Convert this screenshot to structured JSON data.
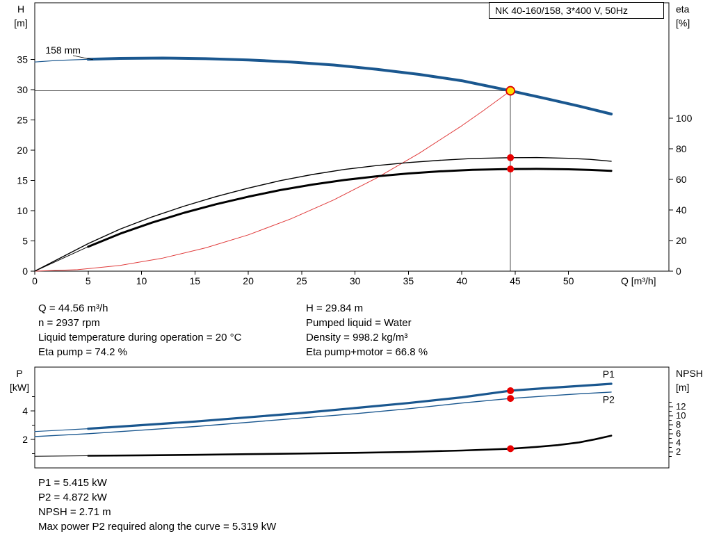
{
  "title_box": {
    "label": "NK 40-160/158, 3*400 V, 50Hz"
  },
  "colors": {
    "curve_blue": "#1a578f",
    "curve_red": "#e03a3a",
    "curve_black": "#000000",
    "dot_red": "#e80000",
    "op_fill": "#ffdf00",
    "op_stroke": "#dd0000",
    "crosshair": "#4d4d4d",
    "label_blue": "#1a578f"
  },
  "chart_data": [
    {
      "type": "line",
      "name": "qh-eta-chart",
      "title": "NK 40-160/158, 3*400 V, 50Hz",
      "xlabel": "Q [m³/h]",
      "ylabel_left": [
        "H",
        "[m]"
      ],
      "ylabel_right": [
        "eta",
        "[%]"
      ],
      "xlim": [
        0,
        59.4
      ],
      "ylim_left": [
        0,
        44.4
      ],
      "ylim_right": [
        0,
        175.5
      ],
      "x_ticks": [
        0,
        5,
        10,
        15,
        20,
        25,
        30,
        35,
        40,
        45,
        50
      ],
      "y_ticks_left": [
        0,
        5,
        10,
        15,
        20,
        25,
        30,
        35
      ],
      "y_ticks_right": [
        0,
        20,
        40,
        60,
        80,
        100
      ],
      "grid": false,
      "series": [
        {
          "name": "head-curve-158mm",
          "axis": "left",
          "color": "curve_blue",
          "width": 4,
          "thin_lead": {
            "until": 5,
            "width": 1.2
          },
          "points": [
            [
              0,
              34.6
            ],
            [
              2,
              34.85
            ],
            [
              5,
              35.05
            ],
            [
              8,
              35.2
            ],
            [
              12,
              35.25
            ],
            [
              16,
              35.15
            ],
            [
              20,
              34.95
            ],
            [
              24,
              34.6
            ],
            [
              28,
              34.1
            ],
            [
              32,
              33.4
            ],
            [
              36,
              32.55
            ],
            [
              40,
              31.5
            ],
            [
              42.5,
              30.6
            ],
            [
              44.56,
              29.84
            ],
            [
              48,
              28.5
            ],
            [
              51,
              27.3
            ],
            [
              54,
              26.0
            ]
          ]
        },
        {
          "name": "system-curve",
          "axis": "left",
          "color": "curve_red",
          "width": 1,
          "points": [
            [
              0,
              0
            ],
            [
              4,
              0.24
            ],
            [
              8,
              0.96
            ],
            [
              12,
              2.16
            ],
            [
              16,
              3.85
            ],
            [
              20,
              6.01
            ],
            [
              24,
              8.66
            ],
            [
              28,
              11.78
            ],
            [
              32,
              15.39
            ],
            [
              36,
              19.48
            ],
            [
              40,
              24.05
            ],
            [
              42,
              26.52
            ],
            [
              44.56,
              29.84
            ]
          ]
        },
        {
          "name": "eta-pump-curve",
          "axis": "right",
          "color": "curve_black",
          "width": 1.4,
          "points": [
            [
              0,
              0
            ],
            [
              5,
              18
            ],
            [
              8,
              27.5
            ],
            [
              11,
              35.5
            ],
            [
              14,
              42.5
            ],
            [
              17,
              48.8
            ],
            [
              20,
              54.3
            ],
            [
              23,
              59.2
            ],
            [
              26,
              63.2
            ],
            [
              29,
              66.5
            ],
            [
              32,
              69
            ],
            [
              35,
              71
            ],
            [
              38,
              72.5
            ],
            [
              41,
              73.7
            ],
            [
              44.56,
              74.2
            ],
            [
              47,
              74.3
            ],
            [
              50,
              73.8
            ],
            [
              52,
              73.1
            ],
            [
              54,
              71.9
            ]
          ]
        },
        {
          "name": "eta-pump-motor-curve",
          "axis": "right",
          "color": "curve_black",
          "width": 3,
          "thin_lead": {
            "until": 5,
            "width": 1
          },
          "points": [
            [
              0,
              0
            ],
            [
              5,
              16
            ],
            [
              8,
              24.5
            ],
            [
              11,
              31.8
            ],
            [
              14,
              38.2
            ],
            [
              17,
              43.8
            ],
            [
              20,
              48.7
            ],
            [
              23,
              53
            ],
            [
              26,
              56.6
            ],
            [
              29,
              59.6
            ],
            [
              32,
              62
            ],
            [
              35,
              63.9
            ],
            [
              38,
              65.3
            ],
            [
              41,
              66.3
            ],
            [
              44.56,
              66.8
            ],
            [
              47,
              66.9
            ],
            [
              50,
              66.6
            ],
            [
              52,
              66.2
            ],
            [
              54,
              65.6
            ]
          ]
        }
      ],
      "operating_point": {
        "q": 44.56,
        "h": 29.84
      },
      "markers": [
        {
          "name": "duty-point",
          "style": "op",
          "axis": "left",
          "x": 44.56,
          "y": 29.84
        },
        {
          "name": "eta-pump-point",
          "style": "dot",
          "axis": "right",
          "x": 44.56,
          "y": 74.2
        },
        {
          "name": "eta-pump-motor-point",
          "style": "dot",
          "axis": "right",
          "x": 44.56,
          "y": 66.8
        }
      ],
      "annotations": [
        {
          "name": "impeller-size-label",
          "text": "158 mm",
          "axis": "left",
          "x": 1.0,
          "y": 36.0,
          "color": "curve_black",
          "leader": {
            "from": [
              3.58,
              35.67
            ],
            "to": [
              5.47,
              34.98
            ]
          }
        }
      ]
    },
    {
      "type": "line",
      "name": "power-npsh-chart",
      "xlabel": "",
      "ylabel_left": [
        "P",
        "[kW]"
      ],
      "ylabel_right": [
        "NPSH",
        "[m]"
      ],
      "xlim": [
        0,
        59.4
      ],
      "ylim_left": [
        0,
        7.07
      ],
      "ylim_right": [
        -1.54,
        20.77
      ],
      "x_ticks": [],
      "y_ticks_left": [
        2,
        4
      ],
      "y_ticks_left_minor": [
        1,
        3,
        5
      ],
      "y_ticks_right": [
        2,
        4,
        6,
        8,
        10,
        12
      ],
      "y_ticks_right_minor": [
        1,
        3,
        5,
        7,
        9,
        11,
        13
      ],
      "grid": false,
      "series": [
        {
          "name": "p1-curve",
          "axis": "left",
          "color": "curve_blue",
          "width": 3.2,
          "thin_lead": {
            "until": 5,
            "width": 1.2
          },
          "points": [
            [
              0,
              2.55
            ],
            [
              5,
              2.75
            ],
            [
              10,
              3.0
            ],
            [
              15,
              3.25
            ],
            [
              20,
              3.55
            ],
            [
              25,
              3.85
            ],
            [
              30,
              4.2
            ],
            [
              35,
              4.55
            ],
            [
              40,
              4.95
            ],
            [
              44.56,
              5.415
            ],
            [
              48,
              5.6
            ],
            [
              51,
              5.75
            ],
            [
              54,
              5.9
            ]
          ]
        },
        {
          "name": "p2-curve",
          "axis": "left",
          "color": "curve_blue",
          "width": 1.4,
          "points": [
            [
              0,
              2.2
            ],
            [
              5,
              2.4
            ],
            [
              10,
              2.65
            ],
            [
              15,
              2.9
            ],
            [
              20,
              3.2
            ],
            [
              25,
              3.5
            ],
            [
              30,
              3.8
            ],
            [
              35,
              4.15
            ],
            [
              40,
              4.55
            ],
            [
              44.56,
              4.872
            ],
            [
              48,
              5.05
            ],
            [
              51,
              5.2
            ],
            [
              54,
              5.32
            ]
          ]
        },
        {
          "name": "npsh-curve",
          "axis": "right",
          "color": "curve_black",
          "width": 2.6,
          "thin_lead": {
            "until": 5,
            "width": 1
          },
          "points": [
            [
              0,
              1.05
            ],
            [
              5,
              1.15
            ],
            [
              10,
              1.25
            ],
            [
              15,
              1.35
            ],
            [
              20,
              1.5
            ],
            [
              25,
              1.65
            ],
            [
              30,
              1.8
            ],
            [
              35,
              2.0
            ],
            [
              40,
              2.3
            ],
            [
              44.56,
              2.71
            ],
            [
              47,
              3.1
            ],
            [
              49,
              3.5
            ],
            [
              51,
              4.1
            ],
            [
              52.5,
              4.8
            ],
            [
              54,
              5.6
            ]
          ]
        }
      ],
      "markers": [
        {
          "name": "p1-point",
          "style": "dot",
          "axis": "left",
          "x": 44.56,
          "y": 5.415
        },
        {
          "name": "p2-point",
          "style": "dot",
          "axis": "left",
          "x": 44.56,
          "y": 4.872
        },
        {
          "name": "npsh-point",
          "style": "dot",
          "axis": "right",
          "x": 44.56,
          "y": 2.71
        }
      ],
      "annotations": [
        {
          "name": "p1-label",
          "text": "P1",
          "axis": "left",
          "x": 53.2,
          "y": 6.35,
          "color": "label_blue"
        },
        {
          "name": "p2-label",
          "text": "P2",
          "axis": "left",
          "x": 53.2,
          "y": 4.55,
          "color": "label_blue"
        }
      ]
    }
  ],
  "info_top": {
    "col1": [
      "Q = 44.56 m³/h",
      "n = 2937 rpm",
      "Liquid temperature during operation = 20 °C",
      "Eta pump = 74.2 %"
    ],
    "col2": [
      "H = 29.84 m",
      "Pumped liquid = Water",
      "Density = 998.2 kg/m³",
      "Eta pump+motor = 66.8 %"
    ]
  },
  "info_bottom": [
    "P1 = 5.415 kW",
    "P2 = 4.872 kW",
    "NPSH = 2.71 m",
    "Max power P2 required along the curve = 5.319 kW"
  ]
}
